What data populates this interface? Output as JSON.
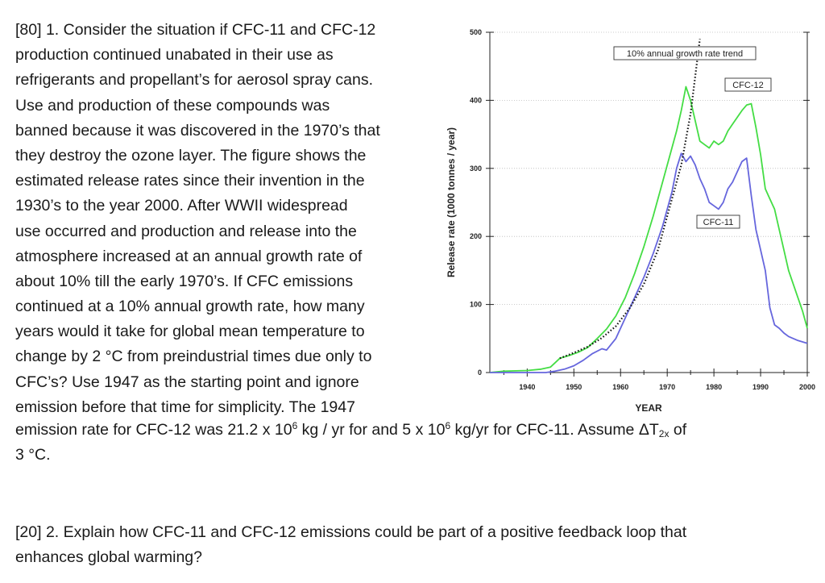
{
  "question1": {
    "lines": [
      "[80] 1. Consider the situation if CFC-11 and CFC-12",
      "production continued unabated in their use as",
      "refrigerants and propellant’s for aerosol spray cans.",
      "Use and production of these compounds was",
      "banned because it was discovered in the 1970’s that",
      "they destroy the ozone layer.  The figure shows the",
      "estimated release rates since their invention in the",
      "1930’s to the year 2000.   After WWII widespread",
      "use occurred and production and release into the",
      "atmosphere increased at an annual growth rate of",
      "about 10% till the early 1970’s.   If CFC emissions",
      "continued at a 10% annual growth rate, how many",
      "years would it take for global mean temperature to",
      "change by 2 °C from preindustrial times due only to",
      "CFC’s?  Use 1947 as the starting point and ignore",
      "emission before that time for simplicity.  The 1947"
    ],
    "wide_line_a": "emission rate for CFC-12 was 21.2 x 10",
    "exp1": "6",
    "wide_line_b": " kg / yr for and 5 x 10",
    "exp2": "6",
    "wide_line_c": " kg/yr for CFC-11.   Assume ΔT",
    "subscript": "2x",
    "wide_line_d": " of",
    "last_line": "3 °C."
  },
  "question2": {
    "lines": [
      "[20] 2.  Explain how CFC-11 and CFC-12 emissions could be part of a positive feedback loop that",
      "enhances global warming?"
    ]
  },
  "chart_data": {
    "type": "line",
    "title": "",
    "xlabel": "YEAR",
    "ylabel": "Release rate (1000 tonnes / year)",
    "xlim": [
      1932,
      2000
    ],
    "ylim": [
      0,
      500
    ],
    "x_ticks": [
      1940,
      1950,
      1960,
      1970,
      1980,
      1990,
      2000
    ],
    "y_ticks": [
      0,
      100,
      200,
      300,
      400,
      500
    ],
    "grid": "horizontal dotted",
    "series": [
      {
        "name": "CFC-12",
        "color": "#44dd44",
        "x": [
          1932,
          1935,
          1940,
          1943,
          1945,
          1947,
          1949,
          1951,
          1953,
          1955,
          1957,
          1959,
          1961,
          1963,
          1965,
          1967,
          1969,
          1971,
          1972,
          1973,
          1974,
          1975,
          1976,
          1977,
          1978,
          1979,
          1980,
          1981,
          1982,
          1983,
          1984,
          1985,
          1986,
          1987,
          1988,
          1989,
          1990,
          1991,
          1992,
          1993,
          1994,
          1995,
          1996,
          1997,
          1998,
          1999,
          2000
        ],
        "y": [
          0,
          2,
          3,
          5,
          8,
          21,
          25,
          30,
          37,
          50,
          64,
          83,
          110,
          145,
          185,
          230,
          280,
          330,
          355,
          385,
          420,
          400,
          370,
          340,
          335,
          330,
          340,
          335,
          340,
          355,
          365,
          375,
          385,
          393,
          395,
          360,
          320,
          270,
          255,
          240,
          210,
          180,
          150,
          130,
          110,
          90,
          65
        ]
      },
      {
        "name": "CFC-11",
        "color": "#6666dd",
        "x": [
          1932,
          1940,
          1944,
          1946,
          1948,
          1950,
          1952,
          1954,
          1956,
          1957,
          1959,
          1961,
          1963,
          1965,
          1967,
          1969,
          1971,
          1972,
          1973,
          1974,
          1975,
          1976,
          1977,
          1978,
          1979,
          1980,
          1981,
          1982,
          1983,
          1984,
          1985,
          1986,
          1987,
          1988,
          1989,
          1990,
          1991,
          1992,
          1993,
          1994,
          1995,
          1996,
          1997,
          1998,
          1999,
          2000
        ],
        "y": [
          0,
          0,
          0,
          2,
          5,
          10,
          18,
          28,
          35,
          33,
          50,
          80,
          110,
          140,
          175,
          215,
          265,
          300,
          322,
          310,
          318,
          305,
          285,
          270,
          250,
          245,
          240,
          250,
          270,
          280,
          295,
          310,
          315,
          260,
          210,
          180,
          150,
          95,
          70,
          65,
          58,
          53,
          50,
          47,
          45,
          43
        ]
      },
      {
        "name": "10% annual growth rate trend",
        "style": "dotted",
        "color": "#111111",
        "x": [
          1947,
          1950,
          1953,
          1956,
          1959,
          1962,
          1965,
          1968,
          1971,
          1973,
          1975,
          1977
        ],
        "y": [
          21,
          29,
          38,
          51,
          68,
          95,
          130,
          180,
          255,
          305,
          380,
          490
        ]
      }
    ],
    "annotations": [
      {
        "text": "10% annual growth rate trend"
      },
      {
        "text": "CFC-12"
      },
      {
        "text": "CFC-11"
      }
    ]
  }
}
